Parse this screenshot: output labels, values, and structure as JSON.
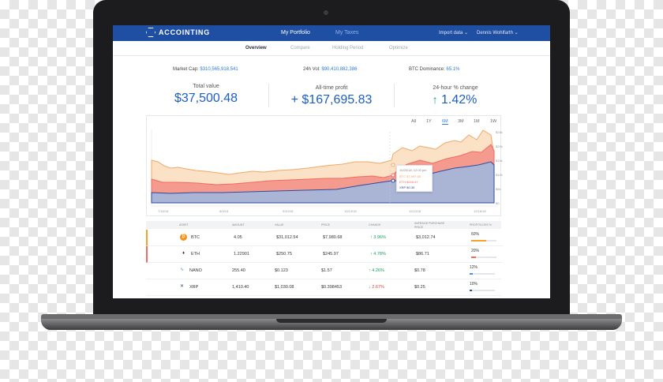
{
  "header": {
    "brand": "ACCOINTING",
    "tabs": [
      "My Portfolio",
      "My Taxes"
    ],
    "import_label": "Import data",
    "user_name": "Dennis Wohlfarth"
  },
  "subnav": {
    "tabs": [
      "Overview",
      "Compare",
      "Holding Period",
      "Optimize"
    ]
  },
  "market": {
    "cap_label": "Market Cap:",
    "cap_value": "$310,565,918,541",
    "vol_label": "24h Vol:",
    "vol_value": "$90,410,882,386",
    "dom_label": "BTC Dominance:",
    "dom_value": "65.1%"
  },
  "stats": [
    {
      "label": "Total value",
      "value": "$37,500.48"
    },
    {
      "label": "All-time profit",
      "value": "+ $167,695.83"
    },
    {
      "label": "24-hour % change",
      "value": "1.42%"
    }
  ],
  "chart": {
    "ranges": [
      "All",
      "1Y",
      "6M",
      "3M",
      "1M",
      "1W"
    ],
    "active_range": "6M",
    "x_labels": [
      "7/18/18",
      "8/9/18",
      "9/10/18",
      "10/13/18",
      "11/13/18",
      "12/18/18"
    ],
    "y_labels": [
      "$0",
      "$5k",
      "$10k",
      "$15k",
      "$20k",
      "$25k"
    ],
    "tooltip_date": "10/20/18, 12:00 pm",
    "tooltip_btc": "BTC $7,997.68",
    "tooltip_eth": "ETH $245.97",
    "tooltip_xrp": "XRP $0.39",
    "colors": {
      "btc": "#f4b183",
      "eth": "#f26b5f",
      "xrp": "#2f4b9c"
    }
  },
  "table": {
    "headers": [
      "ASSET",
      "AMOUNT",
      "VALUE",
      "PRICE",
      "CHANGE",
      "AVERAGE PURCHASE PRICE",
      "PROFIT/LOSS %"
    ],
    "rows": [
      {
        "asset": "BTC",
        "amount": "4.05",
        "value": "$31,012.54",
        "price": "$7,980.68",
        "change": "3.96%",
        "dir": "up",
        "avg": "$3,012.74",
        "pl": "60%"
      },
      {
        "asset": "ETH",
        "amount": "1.22901",
        "value": "$250.75",
        "price": "$245.97",
        "change": "4.78%",
        "dir": "up",
        "avg": "$86.71",
        "pl": "20%"
      },
      {
        "asset": "NANO",
        "amount": "255.40",
        "value": "$0.123",
        "price": "$1.57",
        "change": "4.26%",
        "dir": "up",
        "avg": "$0.78",
        "pl": "12%"
      },
      {
        "asset": "XRP",
        "amount": "1,410.40",
        "value": "$1,030.08",
        "price": "$0.398453",
        "change": "2.67%",
        "dir": "down",
        "avg": "$0.25",
        "pl": "10%"
      }
    ]
  }
}
